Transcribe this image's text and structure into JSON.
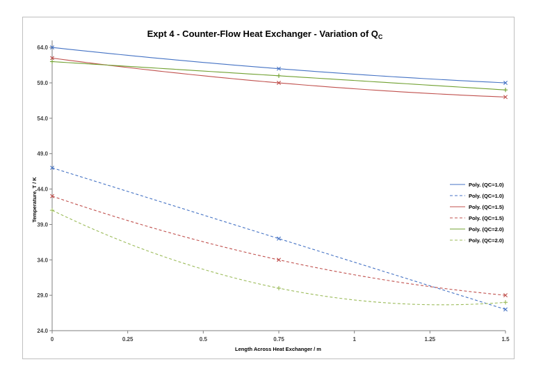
{
  "chart_data": {
    "type": "line",
    "title": "Expt 4 -  Counter-Flow Heat Exchanger - Variation of Q",
    "title_subscript": "C",
    "xlabel": "Length Across Heat Exchanger / m",
    "ylabel": "Temperature, T / K",
    "xlim": [
      0,
      1.5
    ],
    "ylim": [
      24,
      65
    ],
    "x_ticks": [
      0,
      0.25,
      0.5,
      0.75,
      1,
      1.25,
      1.5
    ],
    "x_tick_labels": [
      "0",
      "0.25",
      "0.5",
      "0.75",
      "1",
      "1.25",
      "1.5"
    ],
    "y_ticks": [
      24,
      29,
      34,
      39,
      44,
      49,
      54,
      59,
      64
    ],
    "y_tick_labels": [
      "24.0",
      "29.0",
      "34.0",
      "39.0",
      "44.0",
      "49.0",
      "54.0",
      "59.0",
      "64.0"
    ],
    "grid": false,
    "legend_position": "right",
    "series": [
      {
        "name": "Poly. (QC=1.0)",
        "color": "#4472c4",
        "dash": "solid",
        "marker": "x",
        "x": [
          0,
          0.75,
          1.5
        ],
        "y": [
          64.0,
          61.0,
          59.0
        ]
      },
      {
        "name": "Poly. (QC=1.0)",
        "color": "#4472c4",
        "dash": "dashed",
        "marker": "x",
        "x": [
          0,
          0.75,
          1.5
        ],
        "y": [
          47.0,
          37.0,
          27.0
        ]
      },
      {
        "name": "Poly. (QC=1.5)",
        "color": "#c0504d",
        "dash": "solid",
        "marker": "x",
        "x": [
          0,
          0.75,
          1.5
        ],
        "y": [
          62.5,
          59.0,
          57.0
        ]
      },
      {
        "name": "Poly. (QC=1.5)",
        "color": "#c0504d",
        "dash": "dashed",
        "marker": "x",
        "x": [
          0,
          0.75,
          1.5
        ],
        "y": [
          43.0,
          34.0,
          29.0
        ]
      },
      {
        "name": "Poly. (QC=2.0)",
        "color": "#70a030",
        "dash": "solid",
        "marker": "+",
        "x": [
          0,
          0.75,
          1.5
        ],
        "y": [
          62.0,
          60.0,
          58.0
        ]
      },
      {
        "name": "Poly. (QC=2.0)",
        "color": "#9bbb59",
        "dash": "dashed",
        "marker": "+",
        "x": [
          0,
          0.75,
          1.5
        ],
        "y": [
          41.0,
          30.0,
          28.0
        ]
      }
    ]
  }
}
